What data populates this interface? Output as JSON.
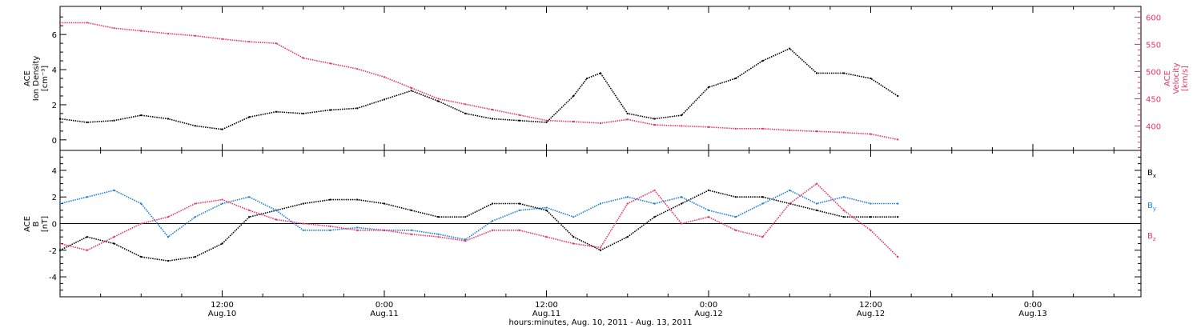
{
  "colors": {
    "black": "#000000",
    "pink": "#e8336a",
    "blue": "#1c7fd6"
  },
  "chart_data": [
    {
      "type": "scatter",
      "panel": "top",
      "ylabel_left": [
        "ACE",
        "Ion Density",
        "[cm⁻³]"
      ],
      "ylabel_right": [
        "ACE",
        "Velocity",
        "[km/s]"
      ],
      "ylim_left": [
        -0.6,
        7.6
      ],
      "yticks_left": [
        0,
        2,
        4,
        6
      ],
      "ylim_right": [
        355,
        620
      ],
      "yticks_right": [
        400,
        450,
        500,
        550,
        600
      ],
      "series": [
        {
          "color": "pink",
          "axis": "right",
          "x_hours": [
            0,
            2,
            4,
            6,
            8,
            10,
            12,
            14,
            16,
            18,
            20,
            22,
            24,
            26,
            28,
            30,
            32,
            34,
            36,
            38,
            40,
            42,
            44,
            46,
            48,
            50,
            52,
            54,
            56,
            58,
            60,
            62
          ],
          "values": [
            590,
            590,
            580,
            575,
            570,
            566,
            560,
            555,
            552,
            525,
            515,
            505,
            490,
            470,
            450,
            440,
            430,
            420,
            410,
            408,
            405,
            412,
            402,
            400,
            398,
            395,
            395,
            392,
            390,
            388,
            385,
            375
          ]
        },
        {
          "color": "black",
          "axis": "left",
          "x_hours": [
            0,
            2,
            4,
            6,
            8,
            10,
            12,
            14,
            16,
            18,
            20,
            22,
            24,
            26,
            28,
            30,
            32,
            34,
            36,
            38,
            39,
            40,
            42,
            44,
            46,
            48,
            50,
            52,
            54,
            56,
            58,
            60,
            62
          ],
          "values": [
            1.2,
            1.0,
            1.1,
            1.4,
            1.2,
            0.8,
            0.6,
            1.3,
            1.6,
            1.5,
            1.7,
            1.8,
            2.3,
            2.8,
            2.2,
            1.5,
            1.2,
            1.1,
            1.0,
            2.5,
            3.5,
            3.8,
            1.5,
            1.2,
            1.4,
            3.0,
            3.5,
            4.5,
            5.2,
            3.8,
            3.8,
            3.5,
            2.5
          ]
        }
      ]
    },
    {
      "type": "scatter",
      "panel": "bottom",
      "ylabel_left": [
        "ACE",
        "B",
        "[nT]"
      ],
      "ylim": [
        -5.5,
        5.5
      ],
      "yticks": [
        -4,
        -2,
        0,
        2,
        4
      ],
      "xticks": [
        {
          "hours": 12,
          "time": "12:00",
          "date": "Aug.10"
        },
        {
          "hours": 24,
          "time": "0:00",
          "date": "Aug.11"
        },
        {
          "hours": 36,
          "time": "12:00",
          "date": "Aug.11"
        },
        {
          "hours": 48,
          "time": "0:00",
          "date": "Aug.12"
        },
        {
          "hours": 60,
          "time": "12:00",
          "date": "Aug.12"
        },
        {
          "hours": 72,
          "time": "0:00",
          "date": "Aug.13"
        }
      ],
      "xlim_hours": [
        0,
        80
      ],
      "xlabel": "hours:minutes, Aug. 10, 2011 - Aug. 13, 2011",
      "legend": [
        {
          "base": "B",
          "sub": "x",
          "color": "black"
        },
        {
          "base": "B",
          "sub": "y",
          "color": "blue"
        },
        {
          "base": "B",
          "sub": "z",
          "color": "pink"
        }
      ],
      "series": [
        {
          "name": "Bx",
          "color": "black",
          "x_hours": [
            0,
            2,
            4,
            6,
            8,
            10,
            12,
            14,
            16,
            18,
            20,
            22,
            24,
            26,
            28,
            30,
            32,
            34,
            36,
            38,
            40,
            42,
            44,
            46,
            48,
            50,
            52,
            54,
            56,
            58,
            60,
            62
          ],
          "values": [
            -2.0,
            -1.0,
            -1.5,
            -2.5,
            -2.8,
            -2.5,
            -1.5,
            0.5,
            1.0,
            1.5,
            1.8,
            1.8,
            1.5,
            1.0,
            0.5,
            0.5,
            1.5,
            1.5,
            1.0,
            -1.0,
            -2.0,
            -1.0,
            0.5,
            1.5,
            2.5,
            2.0,
            2.0,
            1.5,
            1.0,
            0.5,
            0.5,
            0.5
          ]
        },
        {
          "name": "By",
          "color": "blue",
          "x_hours": [
            0,
            2,
            4,
            6,
            8,
            10,
            12,
            14,
            16,
            18,
            20,
            22,
            24,
            26,
            28,
            30,
            32,
            34,
            36,
            38,
            40,
            42,
            44,
            46,
            48,
            50,
            52,
            54,
            56,
            58,
            60,
            62
          ],
          "values": [
            1.5,
            2.0,
            2.5,
            1.5,
            -1.0,
            0.5,
            1.5,
            2.0,
            1.0,
            -0.5,
            -0.5,
            -0.3,
            -0.5,
            -0.5,
            -0.8,
            -1.2,
            0.2,
            1.0,
            1.2,
            0.5,
            1.5,
            2.0,
            1.5,
            2.0,
            1.0,
            0.5,
            1.5,
            2.5,
            1.5,
            2.0,
            1.5,
            1.5
          ]
        },
        {
          "name": "Bz",
          "color": "pink",
          "x_hours": [
            0,
            2,
            4,
            6,
            8,
            10,
            12,
            14,
            16,
            18,
            20,
            22,
            24,
            26,
            28,
            30,
            32,
            34,
            36,
            38,
            40,
            42,
            44,
            46,
            48,
            50,
            52,
            54,
            56,
            58,
            60,
            62
          ],
          "values": [
            -1.5,
            -2.0,
            -1.0,
            0.0,
            0.5,
            1.5,
            1.8,
            1.0,
            0.3,
            0.0,
            -0.2,
            -0.5,
            -0.5,
            -0.8,
            -1.0,
            -1.3,
            -0.5,
            -0.5,
            -1.0,
            -1.5,
            -1.8,
            1.5,
            2.5,
            0.0,
            0.5,
            -0.5,
            -1.0,
            1.5,
            3.0,
            1.0,
            -0.5,
            -2.5
          ]
        }
      ]
    }
  ]
}
